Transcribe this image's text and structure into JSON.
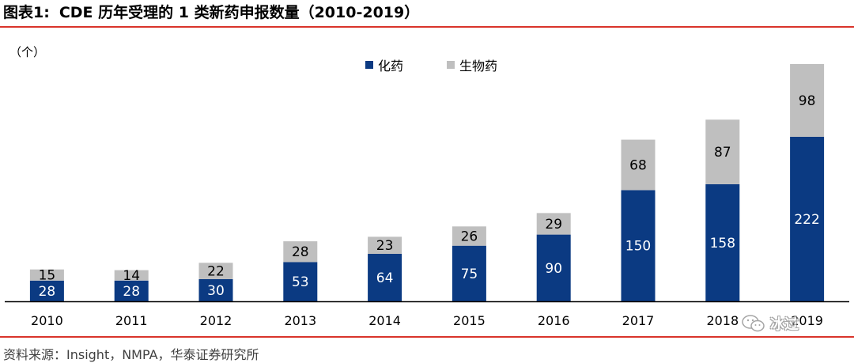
{
  "header": {
    "figure_label": "图表1:",
    "title": "CDE 历年受理的 1 类新药申报数量（2010-2019）"
  },
  "footer": {
    "source": "资料来源：Insight，NMPA，华泰证券研究所"
  },
  "watermark": {
    "text": "冰过"
  },
  "colors": {
    "chem": "#0b3a82",
    "bio": "#bfbfbf",
    "rule": "#d9342b",
    "axis": "#000000"
  },
  "chart_data": {
    "type": "bar",
    "stacked": true,
    "unit_label": "（个）",
    "categories": [
      "2010",
      "2011",
      "2012",
      "2013",
      "2014",
      "2015",
      "2016",
      "2017",
      "2018",
      "2019"
    ],
    "series": [
      {
        "name": "化药",
        "values": [
          28,
          28,
          30,
          53,
          64,
          75,
          90,
          150,
          158,
          222
        ]
      },
      {
        "name": "生物药",
        "values": [
          15,
          14,
          22,
          28,
          23,
          26,
          29,
          68,
          87,
          98
        ]
      }
    ],
    "ylim": [
      0,
      320
    ],
    "grid": false,
    "legend_position": "top-center",
    "data_labels": true
  }
}
